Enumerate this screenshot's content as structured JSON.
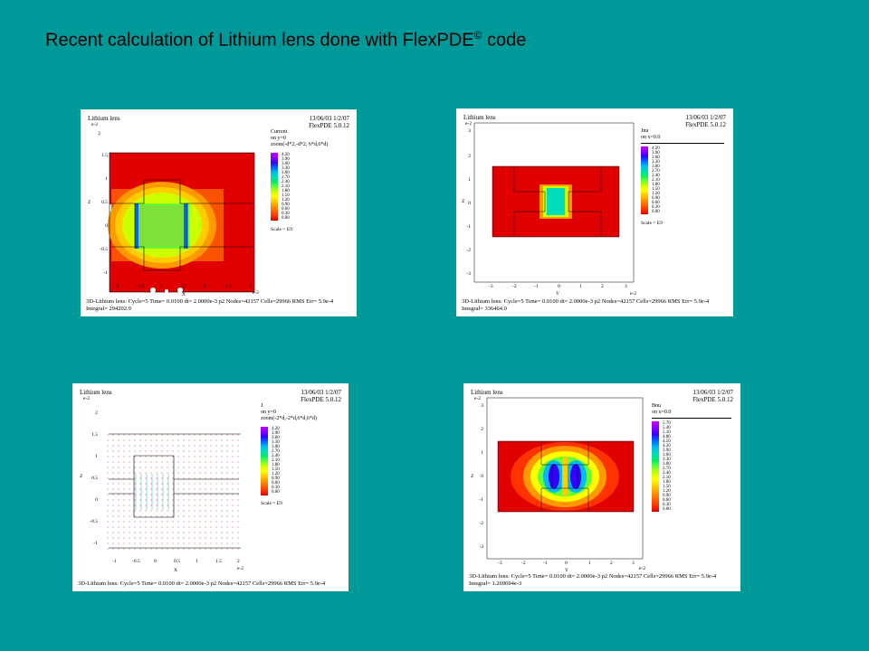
{
  "slide": {
    "title": "Recent calculation of Lithium lens done with FlexPDE",
    "title_mark": "©",
    "title_suffix": " code",
    "background": "#009999"
  },
  "panels": [
    {
      "id": "p1",
      "header_left": "Lithium lens",
      "header_right_1": "13/06/03 1/2/07",
      "header_right_2": "FlexPDE 5.0.12",
      "legend_title": "Current",
      "legend_sub": "on y=0",
      "legend_sub2": "zoom(-d*2,-d*2, 6*d,6*d)",
      "legend_values": [
        "4.20",
        "3.90",
        "3.60",
        "3.30",
        "3.00",
        "2.70",
        "2.40",
        "2.10",
        "1.80",
        "1.50",
        "1.20",
        "0.90",
        "0.60",
        "0.30",
        "0.00"
      ],
      "scale_text": "Scale = E9",
      "x_label": "X",
      "y_label": "Z",
      "exp_label": "e-2",
      "footer_1": "3D-Lithium lens:  Cycle=5  Time= 0.0100  dt= 2.0000e-3  p2  Nodes=42157 Cells=29966 RMS Err= 5.9e-4",
      "footer_2": "Integral=  294202.9"
    },
    {
      "id": "p2",
      "header_left": "Lithium lens",
      "header_right_1": "13/06/03 1/2/07",
      "header_right_2": "FlexPDE 5.0.12",
      "legend_title": "Jnu",
      "legend_sub": "on x=0.0",
      "legend_values": [
        "4.20",
        "3.90",
        "3.60",
        "3.30",
        "3.00",
        "2.70",
        "2.40",
        "2.10",
        "1.80",
        "1.50",
        "1.20",
        "0.90",
        "0.60",
        "0.30",
        "0.00"
      ],
      "scale_text": "Scale = E9",
      "x_label": "Y",
      "y_label": "Z",
      "exp_label": "e-2",
      "footer_1": "3D-Lithium lens:  Cycle=5  Time= 0.0100  dt= 2.0000e-3  p2  Nodes=42157 Cells=29966 RMS Err= 5.9e-4",
      "footer_2": "Integral=  336464.0"
    },
    {
      "id": "p3",
      "header_left": "Lithium lens",
      "header_right_1": "13/06/03 1/2/07",
      "header_right_2": "FlexPDE 5.0.12",
      "legend_title": "J",
      "legend_sub": "on y=0",
      "legend_sub2": "zoom(-2*d,-2*d,6*d,6*d)",
      "legend_values": [
        "4.20",
        "3.90",
        "3.60",
        "3.30",
        "3.00",
        "2.70",
        "2.40",
        "2.10",
        "1.80",
        "1.50",
        "1.20",
        "0.90",
        "0.60",
        "0.30",
        "0.00"
      ],
      "scale_text": "Scale = E9",
      "x_label": "X",
      "y_label": "Z",
      "exp_label": "e-2",
      "footer_1": "3D-Lithium lens:  Cycle=5  Time= 0.0100  dt= 2.0000e-3  p2  Nodes=42157 Cells=29966 RMS Err= 5.9e-4",
      "footer_2": ""
    },
    {
      "id": "p4",
      "header_left": "Lithium lens",
      "header_right_1": "13/06/03 1/2/07",
      "header_right_2": "FlexPDE 5.0.12",
      "legend_title": "Bnu",
      "legend_sub": "on x=0.0",
      "legend_values": [
        "5.70",
        "5.40",
        "5.10",
        "4.80",
        "4.50",
        "4.20",
        "3.90",
        "3.60",
        "3.30",
        "3.00",
        "2.70",
        "2.40",
        "2.10",
        "1.80",
        "1.50",
        "1.20",
        "0.90",
        "0.60",
        "0.30",
        "0.00"
      ],
      "scale_text": "",
      "x_label": "Y",
      "y_label": "Z",
      "exp_label": "e-2",
      "footer_1": "3D-Lithium lens:  Cycle=5  Time= 0.0100  dt= 2.0000e-3  p2  Nodes=42157 Cells=29966 RMS Err= 5.9e-4",
      "footer_2": "Integral=  1.269694e-3"
    }
  ],
  "axes": {
    "p1_x_ticks": [
      "-1",
      "-0.5",
      "0",
      "0.5",
      "1",
      "1.5",
      "2"
    ],
    "p1_y_ticks": [
      "2",
      "1.5",
      "1",
      "0.5",
      "0",
      "-0.5",
      "-1"
    ],
    "p2_x_ticks": [
      "-3",
      "-2",
      "-1",
      "0",
      "1",
      "2",
      "3"
    ],
    "p2_y_ticks": [
      "3",
      "2",
      "1",
      "0",
      "-1",
      "-2",
      "-3"
    ],
    "p3_x_ticks": [
      "-1",
      "-0.5",
      "0",
      "0.5",
      "1",
      "1.5",
      "2"
    ],
    "p3_y_ticks": [
      "2",
      "1.5",
      "1",
      "0.5",
      "0",
      "-0.5",
      "-1"
    ],
    "p4_x_ticks": [
      "-3",
      "-2",
      "-1",
      "0",
      "1",
      "2",
      "3"
    ],
    "p4_y_ticks": [
      "3",
      "2",
      "1",
      "0",
      "-1",
      "-2",
      "-3"
    ]
  },
  "palette": [
    "#e00000",
    "#ff3300",
    "#ff6600",
    "#ff9900",
    "#ffcc00",
    "#ffff00",
    "#ccff00",
    "#66ff33",
    "#00ee66",
    "#00ddbb",
    "#00bbee",
    "#0066ff",
    "#3300ff",
    "#8800ff",
    "#cc00ff"
  ]
}
